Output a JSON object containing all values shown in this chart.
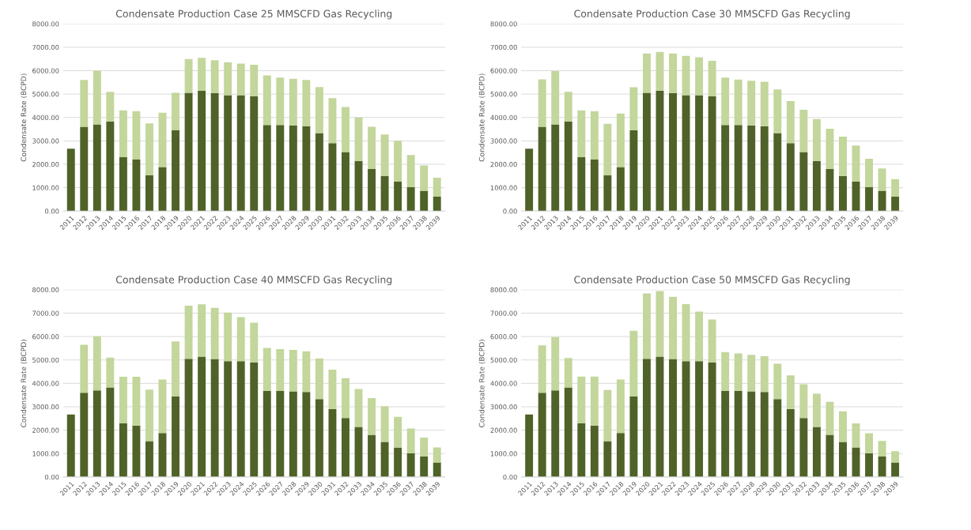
{
  "chart_data": [
    {
      "type": "bar",
      "stacked": true,
      "title": "Condensate Production Case 25 MMSCFD Gas Recycling",
      "ylabel": "Condensate Rate (BCPD)",
      "categories": [
        "2011",
        "2012",
        "2013",
        "2014",
        "2015",
        "2016",
        "2017",
        "2018",
        "2019",
        "2020",
        "2021",
        "2022",
        "2023",
        "2024",
        "2025",
        "2026",
        "2027",
        "2028",
        "2029",
        "2030",
        "2031",
        "2032",
        "2033",
        "2034",
        "2035",
        "2036",
        "2037",
        "2038",
        "2039"
      ],
      "series": [
        {
          "color": "#4f6228",
          "values": [
            2670,
            3600,
            3700,
            3830,
            2300,
            2200,
            1530,
            1880,
            3450,
            5050,
            5140,
            5040,
            4950,
            4950,
            4900,
            3680,
            3680,
            3660,
            3630,
            3330,
            2900,
            2520,
            2140,
            1800,
            1500,
            1260,
            1020,
            870,
            620
          ]
        },
        {
          "color": "#c3d69b",
          "values": [
            0,
            2000,
            2300,
            1270,
            2000,
            2070,
            2220,
            2320,
            1600,
            1450,
            1410,
            1410,
            1400,
            1350,
            1350,
            2120,
            2020,
            1990,
            1970,
            1970,
            1930,
            1930,
            1860,
            1800,
            1770,
            1740,
            1380,
            1080,
            810
          ]
        }
      ],
      "ylim": [
        0,
        8000
      ],
      "yticks": [
        {
          "value": 0,
          "label": "0.00"
        },
        {
          "value": 1000,
          "label": "1000.00"
        },
        {
          "value": 2000,
          "label": "2000.00"
        },
        {
          "value": 3000,
          "label": "3000.00"
        },
        {
          "value": 4000,
          "label": "4000.00"
        },
        {
          "value": 5000,
          "label": "5000.00"
        },
        {
          "value": 6000,
          "label": "6000.00"
        },
        {
          "value": 7000,
          "label": "7000.00"
        },
        {
          "value": 8000,
          "label": "8000.00"
        }
      ],
      "grid": "y"
    },
    {
      "type": "bar",
      "stacked": true,
      "title": "Condensate Production Case 30 MMSCFD Gas Recycling",
      "ylabel": "Condensate Rate (BCPD)",
      "categories": [
        "2011",
        "2012",
        "2013",
        "2014",
        "2015",
        "2016",
        "2017",
        "2018",
        "2019",
        "2020",
        "2021",
        "2022",
        "2023",
        "2024",
        "2025",
        "2026",
        "2027",
        "2028",
        "2029",
        "2030",
        "2031",
        "2032",
        "2033",
        "2034",
        "2035",
        "2036",
        "2037",
        "2038",
        "2039"
      ],
      "series": [
        {
          "color": "#4f6228",
          "values": [
            2670,
            3600,
            3700,
            3830,
            2300,
            2200,
            1530,
            1880,
            3450,
            5050,
            5140,
            5040,
            4950,
            4950,
            4900,
            3680,
            3680,
            3660,
            3630,
            3330,
            2900,
            2520,
            2140,
            1800,
            1500,
            1260,
            1020,
            870,
            620
          ]
        },
        {
          "color": "#c3d69b",
          "values": [
            0,
            2030,
            2280,
            1270,
            2000,
            2070,
            2200,
            2290,
            1840,
            1680,
            1660,
            1690,
            1680,
            1620,
            1520,
            2020,
            1940,
            1910,
            1900,
            1870,
            1800,
            1810,
            1790,
            1720,
            1680,
            1540,
            1220,
            950,
            750
          ]
        }
      ],
      "ylim": [
        0,
        8000
      ],
      "yticks": [
        {
          "value": 0,
          "label": "0.00"
        },
        {
          "value": 1000,
          "label": "1000.00"
        },
        {
          "value": 2000,
          "label": "2000.00"
        },
        {
          "value": 3000,
          "label": "3000.00"
        },
        {
          "value": 4000,
          "label": "4000.00"
        },
        {
          "value": 5000,
          "label": "5000.00"
        },
        {
          "value": 6000,
          "label": "6000.00"
        },
        {
          "value": 7000,
          "label": "7000.00"
        },
        {
          "value": 8000,
          "label": "8000.00"
        }
      ],
      "grid": "y"
    },
    {
      "type": "bar",
      "stacked": true,
      "title": "Condensate Production Case 40 MMSCFD Gas Recycling",
      "ylabel": "Condensate Rate (BCPD)",
      "categories": [
        "2011",
        "2012",
        "2013",
        "2014",
        "2015",
        "2016",
        "2017",
        "2018",
        "2019",
        "2020",
        "2021",
        "2022",
        "2023",
        "2024",
        "2025",
        "2026",
        "2027",
        "2028",
        "2029",
        "2030",
        "2031",
        "2032",
        "2033",
        "2034",
        "2035",
        "2036",
        "2037",
        "2038",
        "2039"
      ],
      "series": [
        {
          "color": "#4f6228",
          "values": [
            2670,
            3600,
            3700,
            3830,
            2300,
            2200,
            1530,
            1880,
            3450,
            5050,
            5140,
            5040,
            4950,
            4950,
            4900,
            3680,
            3680,
            3660,
            3630,
            3330,
            2900,
            2520,
            2140,
            1800,
            1500,
            1260,
            1020,
            870,
            620
          ]
        },
        {
          "color": "#c3d69b",
          "values": [
            0,
            2050,
            2310,
            1270,
            1980,
            2080,
            2200,
            2280,
            2340,
            2270,
            2240,
            2190,
            2070,
            1880,
            1690,
            1830,
            1780,
            1770,
            1740,
            1740,
            1690,
            1700,
            1620,
            1570,
            1520,
            1310,
            1050,
            810,
            640
          ]
        }
      ],
      "ylim": [
        0,
        8000
      ],
      "yticks": [
        {
          "value": 0,
          "label": "0.00"
        },
        {
          "value": 1000,
          "label": "1000.00"
        },
        {
          "value": 2000,
          "label": "2000.00"
        },
        {
          "value": 3000,
          "label": "3000.00"
        },
        {
          "value": 4000,
          "label": "4000.00"
        },
        {
          "value": 5000,
          "label": "5000.00"
        },
        {
          "value": 6000,
          "label": "6000.00"
        },
        {
          "value": 7000,
          "label": "7000.00"
        },
        {
          "value": 8000,
          "label": "8000.00"
        }
      ],
      "grid": "y"
    },
    {
      "type": "bar",
      "stacked": true,
      "title": "Condensate Production Case 50 MMSCFD Gas Recycling",
      "ylabel": "Condensate Rate (BCPD)",
      "categories": [
        "2011",
        "2012",
        "2013",
        "2014",
        "2015",
        "2016",
        "2017",
        "2018",
        "2019",
        "2020",
        "2021",
        "2022",
        "2023",
        "2024",
        "2025",
        "2026",
        "2027",
        "2028",
        "2029",
        "2030",
        "2031",
        "2032",
        "2033",
        "2034",
        "2035",
        "2036",
        "2037",
        "2038",
        "2039"
      ],
      "series": [
        {
          "color": "#4f6228",
          "values": [
            2670,
            3600,
            3700,
            3830,
            2300,
            2200,
            1530,
            1880,
            3450,
            5050,
            5140,
            5040,
            4950,
            4950,
            4900,
            3680,
            3680,
            3660,
            3630,
            3330,
            2900,
            2520,
            2140,
            1800,
            1500,
            1260,
            1020,
            870,
            620
          ]
        },
        {
          "color": "#c3d69b",
          "values": [
            0,
            2020,
            2280,
            1250,
            1990,
            2090,
            2190,
            2280,
            2800,
            2790,
            2800,
            2660,
            2440,
            2120,
            1830,
            1660,
            1600,
            1560,
            1530,
            1510,
            1440,
            1440,
            1420,
            1410,
            1310,
            1030,
            850,
            670,
            480
          ]
        }
      ],
      "ylim": [
        0,
        8000
      ],
      "yticks": [
        {
          "value": 0,
          "label": "0.00"
        },
        {
          "value": 1000,
          "label": "1000.00"
        },
        {
          "value": 2000,
          "label": "2000.00"
        },
        {
          "value": 3000,
          "label": "3000.00"
        },
        {
          "value": 4000,
          "label": "4000.00"
        },
        {
          "value": 5000,
          "label": "5000.00"
        },
        {
          "value": 6000,
          "label": "6000.00"
        },
        {
          "value": 7000,
          "label": "7000.00"
        },
        {
          "value": 8000,
          "label": "8000.00"
        }
      ],
      "grid": "y"
    }
  ]
}
